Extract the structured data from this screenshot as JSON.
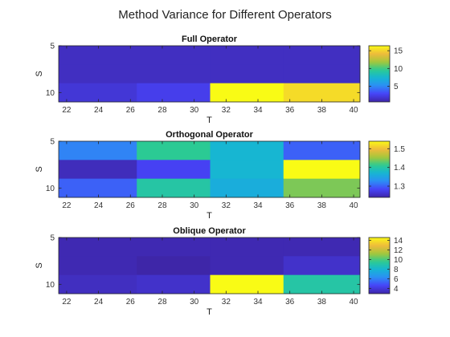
{
  "figure": {
    "title": "Method Variance for Different Operators"
  },
  "colormap": [
    "#3e26a8",
    "#4743f8",
    "#2c8ef5",
    "#16b5d4",
    "#2ccb92",
    "#a6c739",
    "#f0ba3c",
    "#f9fb15"
  ],
  "chart_data": [
    {
      "type": "heatmap",
      "title": "Full Operator",
      "xlabel": "T",
      "ylabel": "S",
      "x_edges": [
        21.5,
        26.4,
        31.0,
        35.6,
        40.4
      ],
      "y_edges": [
        5,
        7,
        9,
        11
      ],
      "y_reversed": true,
      "xticks": [
        22,
        24,
        26,
        28,
        30,
        32,
        34,
        36,
        38,
        40
      ],
      "yticks": [
        5,
        10
      ],
      "clim": [
        0.6,
        16.4
      ],
      "cbar_ticks": [
        5,
        10,
        15
      ],
      "values": [
        [
          1.3,
          1.3,
          1.3,
          1.3
        ],
        [
          1.3,
          1.3,
          1.3,
          1.3
        ],
        [
          1.9,
          2.5,
          16.4,
          15.3
        ]
      ]
    },
    {
      "type": "heatmap",
      "title": "Orthogonal Operator",
      "xlabel": "T",
      "ylabel": "S",
      "x_edges": [
        21.5,
        26.4,
        31.0,
        35.6,
        40.4
      ],
      "y_edges": [
        5,
        7,
        9,
        11
      ],
      "y_reversed": true,
      "xticks": [
        22,
        24,
        26,
        28,
        30,
        32,
        34,
        36,
        38,
        40
      ],
      "yticks": [
        5,
        10
      ],
      "clim": [
        1.24,
        1.54
      ],
      "cbar_ticks": [
        1.3,
        1.4,
        1.5
      ],
      "values": [
        [
          1.32,
          1.41,
          1.37,
          1.3
        ],
        [
          1.25,
          1.28,
          1.37,
          1.54
        ],
        [
          1.3,
          1.4,
          1.36,
          1.44
        ]
      ]
    },
    {
      "type": "heatmap",
      "title": "Oblique Operator",
      "xlabel": "T",
      "ylabel": "S",
      "x_edges": [
        21.5,
        26.4,
        31.0,
        35.6,
        40.4
      ],
      "y_edges": [
        5,
        7,
        9,
        11
      ],
      "y_reversed": true,
      "xticks": [
        22,
        24,
        26,
        28,
        30,
        32,
        34,
        36,
        38,
        40
      ],
      "yticks": [
        5,
        10
      ],
      "clim": [
        2.9,
        14.6
      ],
      "cbar_ticks": [
        4,
        6,
        8,
        10,
        12,
        14
      ],
      "values": [
        [
          3.1,
          3.1,
          3.1,
          3.1
        ],
        [
          3.1,
          2.9,
          3.1,
          3.6
        ],
        [
          3.4,
          3.6,
          14.6,
          9.1
        ]
      ]
    }
  ]
}
